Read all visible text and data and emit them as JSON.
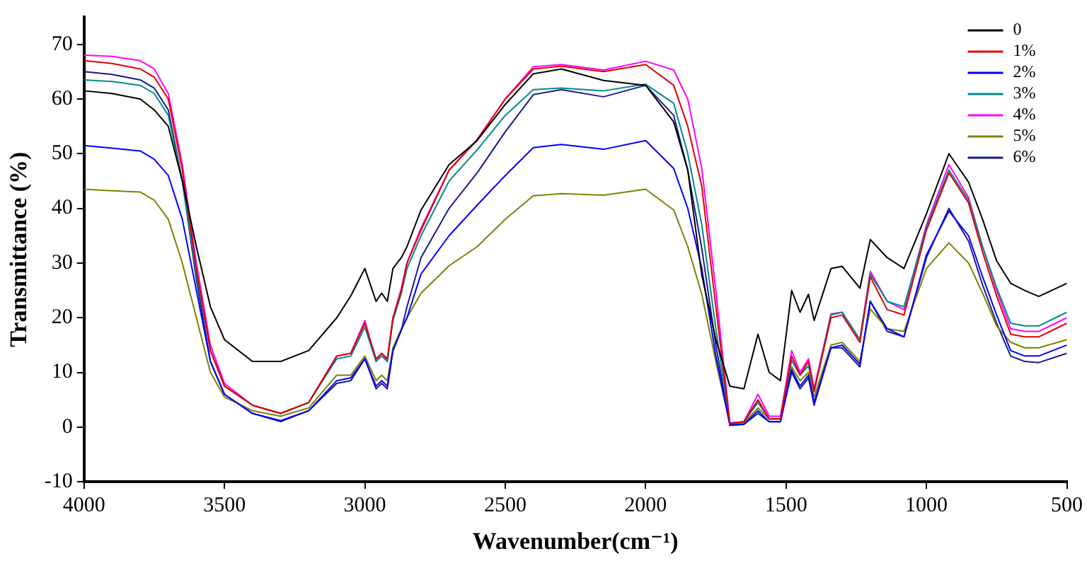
{
  "chart_data": {
    "type": "line",
    "xlabel": "Wavenumber(cm⁻¹)",
    "ylabel": "Transmittance (%)",
    "x": [
      4000,
      3900,
      3800,
      3750,
      3700,
      3650,
      3600,
      3550,
      3500,
      3400,
      3300,
      3200,
      3100,
      3050,
      3000,
      2960,
      2940,
      2920,
      2900,
      2870,
      2850,
      2800,
      2700,
      2600,
      2500,
      2400,
      2300,
      2150,
      2000,
      1900,
      1850,
      1800,
      1750,
      1700,
      1650,
      1600,
      1560,
      1520,
      1480,
      1450,
      1420,
      1400,
      1340,
      1300,
      1237,
      1200,
      1140,
      1080,
      1000,
      920,
      850,
      800,
      750,
      700,
      650,
      600,
      500
    ],
    "series": [
      {
        "name": "0",
        "color": "#000000",
        "values": [
          61.5,
          61,
          60,
          58,
          55,
          45,
          33,
          22,
          16,
          12,
          12,
          14,
          20,
          24,
          29,
          23,
          24.5,
          23,
          29,
          31,
          33,
          39.7,
          48,
          52.4,
          59,
          64.6,
          65.5,
          63.4,
          62.5,
          55.8,
          47,
          27.8,
          16,
          7.5,
          7,
          17,
          10,
          8.5,
          25,
          21,
          24.3,
          19.5,
          29,
          29.4,
          25.4,
          34.3,
          31,
          29,
          39,
          50,
          44.8,
          38,
          30.4,
          26.3,
          25,
          23.9,
          26.3
        ]
      },
      {
        "name": "1%",
        "color": "#e00000",
        "values": [
          67,
          66.5,
          65.5,
          64,
          60,
          47,
          29,
          14,
          7.5,
          4,
          2.5,
          4.5,
          13,
          13.5,
          19,
          12.5,
          13.5,
          12.5,
          20,
          25,
          30,
          36,
          47,
          52.5,
          60,
          65.5,
          66,
          65,
          66.3,
          62.5,
          55,
          44,
          22,
          0.6,
          1,
          5,
          1.5,
          1.5,
          13,
          9.5,
          12,
          6.5,
          20,
          20.5,
          15.5,
          27.5,
          21.5,
          20.5,
          36,
          46.5,
          41,
          32,
          24,
          17,
          16.5,
          16.5,
          19
        ]
      },
      {
        "name": "2%",
        "color": "#0000ff",
        "values": [
          51.5,
          51,
          50.5,
          49,
          46,
          38,
          25,
          12,
          6,
          2.5,
          1.2,
          3,
          8.5,
          9,
          12.5,
          7.5,
          8.5,
          7.5,
          14,
          17.8,
          20,
          28,
          35,
          40.6,
          46,
          51.1,
          51.7,
          50.8,
          52.4,
          47.3,
          40,
          29,
          13,
          0.4,
          0.5,
          3,
          1,
          1,
          10.5,
          7.5,
          9.5,
          4.5,
          14.5,
          15,
          11.5,
          23,
          18,
          16.5,
          31.5,
          39.5,
          35,
          27.5,
          20.5,
          14,
          13,
          13,
          15
        ]
      },
      {
        "name": "3%",
        "color": "#008b8b",
        "values": [
          63.5,
          63.2,
          62.5,
          61,
          57,
          45,
          28,
          14,
          7.5,
          4,
          2.5,
          4.5,
          12.5,
          13,
          18.3,
          12,
          13,
          12,
          19.5,
          24.5,
          29,
          35,
          45,
          50.7,
          57,
          61.7,
          62,
          61.5,
          62.7,
          59.2,
          50,
          37,
          18,
          0.6,
          1,
          4.5,
          1.5,
          1.5,
          12.2,
          9.5,
          11.2,
          6.5,
          20.5,
          21,
          16,
          28,
          23,
          22,
          36.5,
          47,
          41.5,
          33,
          25.5,
          19,
          18.5,
          18.5,
          21
        ]
      },
      {
        "name": "4%",
        "color": "#ff00ff",
        "values": [
          68,
          67.8,
          67,
          65.5,
          61,
          48,
          30,
          15,
          8,
          4,
          2.5,
          4.5,
          13,
          13.5,
          19.5,
          12,
          13.5,
          12,
          20,
          25.4,
          30,
          36.4,
          47,
          52.6,
          60,
          65.9,
          66.3,
          65.3,
          66.9,
          65.3,
          60,
          47.3,
          25,
          0.8,
          1,
          6,
          2,
          2,
          14,
          10,
          12.5,
          7,
          20.7,
          21,
          16,
          28.5,
          23,
          21.5,
          37,
          48,
          42,
          33,
          25,
          18,
          17.5,
          17.5,
          20
        ]
      },
      {
        "name": "5%",
        "color": "#808000",
        "values": [
          43.5,
          43.2,
          43,
          41.5,
          38,
          30,
          20,
          10,
          5.5,
          3,
          2,
          3.5,
          9.5,
          9.5,
          13,
          8.5,
          9.5,
          8.5,
          14.5,
          18,
          20,
          24.5,
          29.5,
          33,
          38,
          42.3,
          42.7,
          42.4,
          43.5,
          39.7,
          33,
          24.3,
          12,
          0.5,
          0.8,
          3.5,
          1.5,
          1.5,
          11,
          8.5,
          10,
          5.5,
          15,
          15.5,
          12,
          21.6,
          18,
          17.5,
          29,
          33.7,
          30,
          24.5,
          18.5,
          15.5,
          14.5,
          14.5,
          16
        ]
      },
      {
        "name": "6%",
        "color": "#1a1a8c",
        "values": [
          65,
          64.5,
          63.5,
          62,
          58,
          45,
          27,
          12,
          6,
          2.5,
          1,
          3,
          8,
          8.5,
          12.5,
          7,
          8,
          7,
          14,
          17.8,
          22,
          31,
          40,
          46.5,
          54,
          60.8,
          61.7,
          60.4,
          62.5,
          57,
          47,
          32.7,
          15,
          0.3,
          0.5,
          2.5,
          1,
          1,
          10,
          7,
          9,
          4,
          14.5,
          14.5,
          11,
          23,
          17.5,
          16.5,
          31,
          40,
          34,
          26,
          19,
          13,
          12,
          11.8,
          13.5
        ]
      }
    ],
    "xlim": [
      4000,
      500
    ],
    "xticks": [
      4000,
      3500,
      3000,
      2500,
      2000,
      1500,
      1000,
      500
    ],
    "ylim": [
      -10,
      75
    ],
    "yticks": [
      -10,
      0,
      10,
      20,
      30,
      40,
      50,
      60,
      70
    ],
    "grid": false,
    "legend": "top right",
    "marker": "none",
    "line_style": "solid"
  }
}
